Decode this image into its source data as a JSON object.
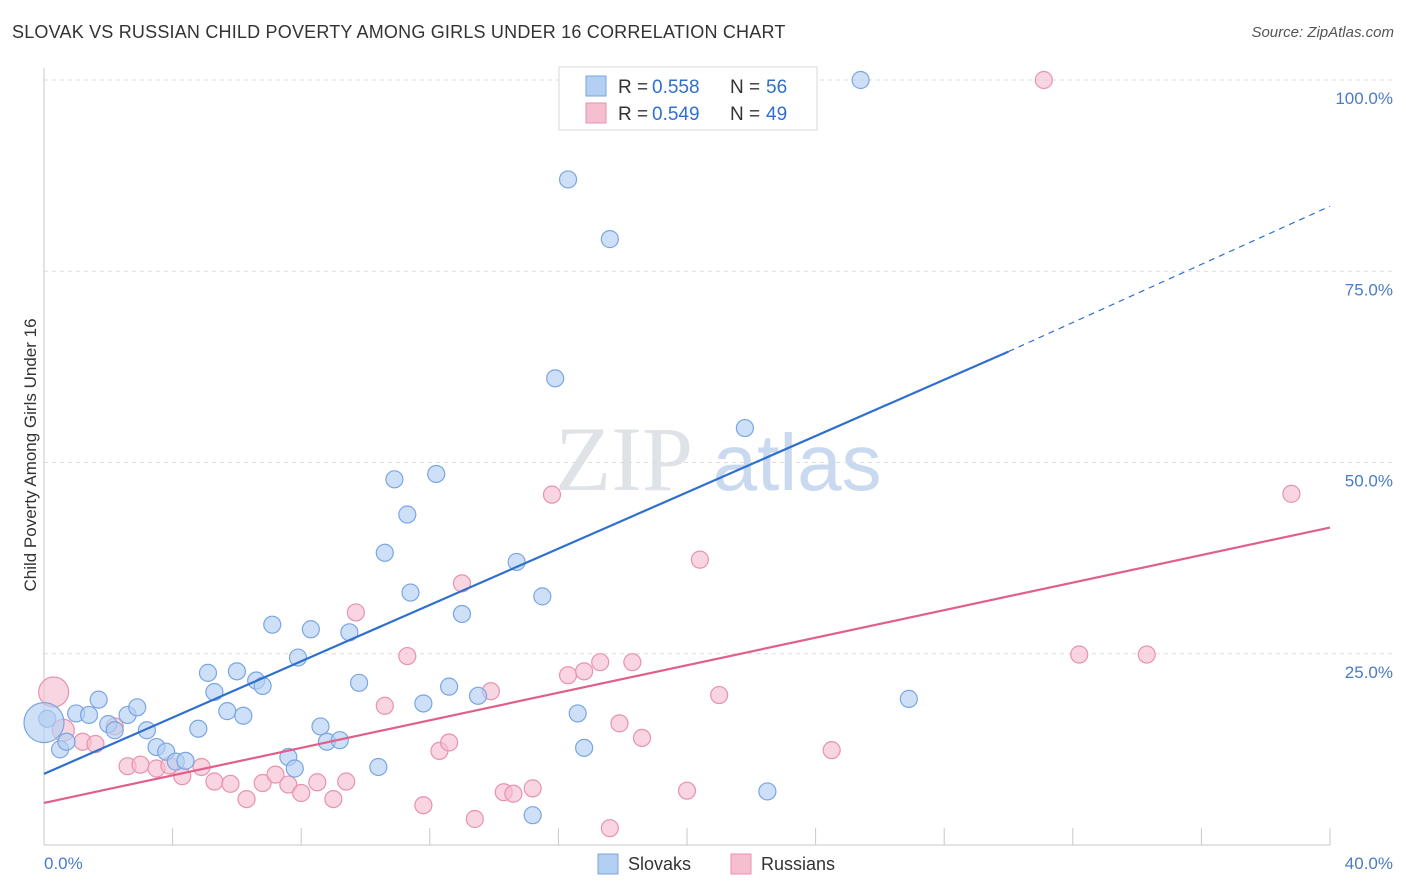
{
  "title": "SLOVAK VS RUSSIAN CHILD POVERTY AMONG GIRLS UNDER 16 CORRELATION CHART",
  "source": "Source: ZipAtlas.com",
  "watermark": "ZIPatlas",
  "colors": {
    "slovaks": "#2f6fce",
    "slovaks_fill": "#b3cff2",
    "russians": "#e0608a",
    "russians_fill": "#f5bfd0",
    "tick_label": "#4a7cc4",
    "grid": "#dddddd"
  },
  "legend": {
    "slovaks": {
      "r_label": "R =",
      "r_value": "0.558",
      "n_label": "N =",
      "n_value": "56"
    },
    "russians": {
      "r_label": "R =",
      "r_value": "0.549",
      "n_label": "N =",
      "n_value": "49"
    }
  },
  "chart_data": {
    "type": "scatter",
    "title": "SLOVAK VS RUSSIAN CHILD POVERTY AMONG GIRLS UNDER 16 CORRELATION CHART",
    "xlabel": "",
    "ylabel": "Child Poverty Among Girls Under 16",
    "xlim": [
      0,
      40
    ],
    "ylim": [
      0,
      100
    ],
    "x_tick_labels": [
      "0.0%",
      "40.0%"
    ],
    "y_tick_labels": [
      "100.0%",
      "75.0%",
      "50.0%",
      "25.0%"
    ],
    "y_ticks": [
      100,
      75,
      50,
      25
    ],
    "grid": true,
    "legend_placement": "top-center and bottom-center",
    "series": [
      {
        "name": "Slovaks",
        "color": "#2f6fce",
        "points": [
          [
            0.1,
            16.5
          ],
          [
            0.5,
            12.5
          ],
          [
            0.7,
            13.5
          ],
          [
            1.0,
            17.2
          ],
          [
            1.4,
            17.0
          ],
          [
            1.7,
            19.0
          ],
          [
            2.0,
            15.8
          ],
          [
            2.2,
            15.0
          ],
          [
            2.6,
            17.0
          ],
          [
            2.9,
            18.0
          ],
          [
            3.2,
            15.0
          ],
          [
            3.5,
            12.8
          ],
          [
            3.8,
            12.2
          ],
          [
            4.1,
            10.9
          ],
          [
            4.4,
            11.0
          ],
          [
            4.8,
            15.2
          ],
          [
            5.1,
            22.5
          ],
          [
            5.3,
            20.0
          ],
          [
            5.7,
            17.5
          ],
          [
            6.0,
            22.7
          ],
          [
            6.2,
            16.9
          ],
          [
            6.6,
            21.5
          ],
          [
            6.8,
            20.8
          ],
          [
            7.1,
            28.8
          ],
          [
            7.6,
            11.5
          ],
          [
            7.8,
            10.0
          ],
          [
            7.9,
            24.5
          ],
          [
            8.3,
            28.2
          ],
          [
            8.6,
            15.5
          ],
          [
            8.8,
            13.5
          ],
          [
            9.2,
            13.7
          ],
          [
            9.5,
            27.8
          ],
          [
            9.8,
            21.2
          ],
          [
            10.4,
            10.2
          ],
          [
            10.6,
            38.2
          ],
          [
            10.9,
            47.8
          ],
          [
            11.3,
            43.2
          ],
          [
            11.4,
            33.0
          ],
          [
            11.8,
            18.5
          ],
          [
            12.2,
            48.5
          ],
          [
            12.6,
            20.7
          ],
          [
            13.0,
            30.2
          ],
          [
            13.5,
            19.5
          ],
          [
            14.7,
            37.0
          ],
          [
            15.2,
            3.9
          ],
          [
            15.5,
            32.5
          ],
          [
            15.9,
            61.0
          ],
          [
            16.3,
            87.0
          ],
          [
            16.6,
            17.2
          ],
          [
            16.8,
            12.7
          ],
          [
            17.6,
            79.2
          ],
          [
            21.8,
            54.5
          ],
          [
            22.5,
            7.0
          ],
          [
            25.4,
            100.0
          ],
          [
            26.9,
            19.1
          ],
          [
            0.0,
            16.0
          ]
        ]
      },
      {
        "name": "Russians",
        "color": "#e0608a",
        "points": [
          [
            0.3,
            20.0
          ],
          [
            0.6,
            15.0
          ],
          [
            1.2,
            13.5
          ],
          [
            1.6,
            13.2
          ],
          [
            2.2,
            15.5
          ],
          [
            2.6,
            10.3
          ],
          [
            3.0,
            10.5
          ],
          [
            3.5,
            10.0
          ],
          [
            3.9,
            10.4
          ],
          [
            4.3,
            9.0
          ],
          [
            4.9,
            10.2
          ],
          [
            5.3,
            8.3
          ],
          [
            5.8,
            8.0
          ],
          [
            6.3,
            6.0
          ],
          [
            6.8,
            8.1
          ],
          [
            7.2,
            9.2
          ],
          [
            7.6,
            7.9
          ],
          [
            8.0,
            6.8
          ],
          [
            8.5,
            8.2
          ],
          [
            9.0,
            6.0
          ],
          [
            9.4,
            8.3
          ],
          [
            9.7,
            30.4
          ],
          [
            10.6,
            18.2
          ],
          [
            11.3,
            24.7
          ],
          [
            11.8,
            5.2
          ],
          [
            12.3,
            12.3
          ],
          [
            12.6,
            13.4
          ],
          [
            13.0,
            34.2
          ],
          [
            13.4,
            3.4
          ],
          [
            13.9,
            20.1
          ],
          [
            14.3,
            6.9
          ],
          [
            14.6,
            6.7
          ],
          [
            15.2,
            7.4
          ],
          [
            15.8,
            45.8
          ],
          [
            16.3,
            22.2
          ],
          [
            16.8,
            22.7
          ],
          [
            17.3,
            23.9
          ],
          [
            17.6,
            2.2
          ],
          [
            17.9,
            15.9
          ],
          [
            18.3,
            23.9
          ],
          [
            18.6,
            14.0
          ],
          [
            20.0,
            7.1
          ],
          [
            20.4,
            37.3
          ],
          [
            21.0,
            19.6
          ],
          [
            24.5,
            12.4
          ],
          [
            31.1,
            100.0
          ],
          [
            32.2,
            24.9
          ],
          [
            34.3,
            24.9
          ],
          [
            38.8,
            45.9
          ]
        ]
      }
    ],
    "trend_lines": [
      {
        "name": "Slovaks",
        "from": [
          0,
          9.3
        ],
        "to": [
          30,
          64.5
        ],
        "dashed_to": [
          40,
          83.5
        ]
      },
      {
        "name": "Russians",
        "from": [
          0,
          5.5
        ],
        "to": [
          40,
          41.5
        ]
      }
    ]
  },
  "bottom_legend": {
    "slovaks": "Slovaks",
    "russians": "Russians"
  }
}
